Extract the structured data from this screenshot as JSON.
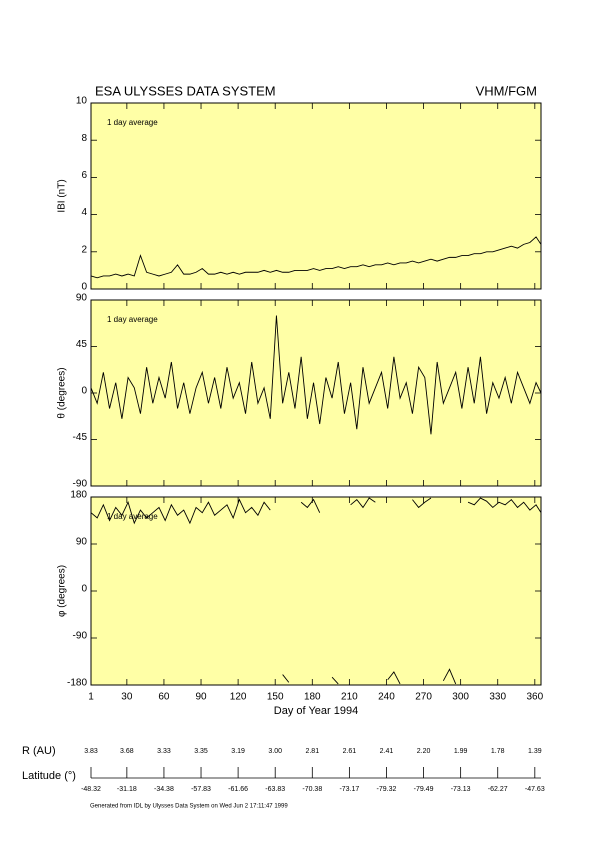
{
  "header": {
    "title": "ESA ULYSSES DATA SYSTEM",
    "instrument": "VHM/FGM"
  },
  "chart_data": [
    {
      "type": "line",
      "axis_label": "IBI (nT)",
      "annotation": "1 day average",
      "color": "#000000",
      "x": [
        1,
        6,
        11,
        16,
        21,
        26,
        31,
        36,
        41,
        46,
        51,
        56,
        61,
        66,
        71,
        76,
        81,
        86,
        91,
        96,
        101,
        106,
        111,
        116,
        121,
        126,
        131,
        136,
        141,
        146,
        151,
        156,
        161,
        166,
        171,
        176,
        181,
        186,
        191,
        196,
        201,
        206,
        211,
        216,
        221,
        226,
        231,
        236,
        241,
        246,
        251,
        256,
        261,
        266,
        271,
        276,
        281,
        286,
        291,
        296,
        301,
        306,
        311,
        316,
        321,
        326,
        331,
        336,
        341,
        346,
        351,
        356,
        361,
        365
      ],
      "values": [
        0.7,
        0.6,
        0.7,
        0.7,
        0.8,
        0.7,
        0.8,
        0.7,
        1.8,
        0.9,
        0.8,
        0.7,
        0.8,
        0.9,
        1.3,
        0.8,
        0.8,
        0.9,
        1.1,
        0.8,
        0.8,
        0.9,
        0.8,
        0.9,
        0.8,
        0.9,
        0.9,
        0.9,
        1.0,
        0.9,
        1.0,
        0.9,
        0.9,
        1.0,
        1.0,
        1.0,
        1.1,
        1.0,
        1.1,
        1.1,
        1.2,
        1.1,
        1.2,
        1.2,
        1.3,
        1.2,
        1.3,
        1.3,
        1.4,
        1.3,
        1.4,
        1.4,
        1.5,
        1.4,
        1.5,
        1.6,
        1.5,
        1.6,
        1.7,
        1.7,
        1.8,
        1.8,
        1.9,
        1.9,
        2.0,
        2.0,
        2.1,
        2.2,
        2.3,
        2.2,
        2.4,
        2.5,
        2.8,
        2.4
      ],
      "xlim": [
        1,
        365
      ],
      "xticks": [
        1,
        30,
        60,
        90,
        120,
        150,
        180,
        210,
        240,
        270,
        300,
        330,
        360
      ],
      "ylim": [
        0,
        10
      ],
      "yticks": [
        0,
        2,
        4,
        6,
        8,
        10
      ]
    },
    {
      "type": "line",
      "axis_label": "θ (degrees)",
      "annotation": "1 day average",
      "color": "#000000",
      "x": [
        1,
        6,
        11,
        16,
        21,
        26,
        31,
        36,
        41,
        46,
        51,
        56,
        61,
        66,
        71,
        76,
        81,
        86,
        91,
        96,
        101,
        106,
        111,
        116,
        121,
        126,
        131,
        136,
        141,
        146,
        151,
        156,
        161,
        166,
        171,
        176,
        181,
        186,
        191,
        196,
        201,
        206,
        211,
        216,
        221,
        226,
        231,
        236,
        241,
        246,
        251,
        256,
        261,
        266,
        271,
        276,
        281,
        286,
        291,
        296,
        301,
        306,
        311,
        316,
        321,
        326,
        331,
        336,
        341,
        346,
        351,
        356,
        361,
        365
      ],
      "values": [
        5,
        -10,
        20,
        -15,
        10,
        -25,
        15,
        5,
        -20,
        25,
        -10,
        15,
        -5,
        30,
        -15,
        10,
        -20,
        5,
        20,
        -10,
        15,
        -15,
        25,
        -5,
        10,
        -20,
        30,
        -10,
        5,
        -25,
        75,
        -10,
        20,
        -15,
        35,
        -25,
        10,
        -30,
        15,
        -5,
        30,
        -20,
        10,
        -35,
        25,
        -10,
        5,
        20,
        -15,
        35,
        -5,
        10,
        -20,
        25,
        15,
        -40,
        30,
        -10,
        5,
        20,
        -15,
        25,
        -10,
        35,
        -20,
        10,
        -5,
        15,
        -10,
        20,
        5,
        -10,
        10,
        0
      ],
      "xlim": [
        1,
        365
      ],
      "xticks": [
        1,
        30,
        60,
        90,
        120,
        150,
        180,
        210,
        240,
        270,
        300,
        330,
        360
      ],
      "ylim": [
        -90,
        90
      ],
      "yticks": [
        -90,
        -45,
        0,
        45,
        90
      ]
    },
    {
      "type": "line",
      "axis_label": "φ (degrees)",
      "annotation": "1 day average",
      "color": "#000000",
      "xlabel": "Day of Year 1994",
      "x": [
        1,
        6,
        11,
        16,
        21,
        26,
        31,
        36,
        41,
        46,
        51,
        56,
        61,
        66,
        71,
        76,
        81,
        86,
        91,
        96,
        101,
        106,
        111,
        116,
        121,
        126,
        131,
        136,
        141,
        146,
        151,
        156,
        161,
        166,
        171,
        176,
        181,
        186,
        191,
        196,
        201,
        206,
        211,
        216,
        221,
        226,
        231,
        236,
        241,
        246,
        251,
        256,
        261,
        266,
        271,
        276,
        281,
        286,
        291,
        296,
        301,
        306,
        311,
        316,
        321,
        326,
        331,
        336,
        341,
        346,
        351,
        356,
        361,
        365
      ],
      "values": [
        150,
        140,
        165,
        135,
        160,
        145,
        170,
        130,
        155,
        140,
        150,
        160,
        135,
        165,
        145,
        155,
        130,
        160,
        150,
        170,
        145,
        155,
        165,
        140,
        175,
        150,
        160,
        145,
        170,
        155,
        null,
        -160,
        -175,
        null,
        170,
        160,
        175,
        150,
        null,
        -165,
        -178,
        null,
        165,
        175,
        160,
        178,
        170,
        null,
        -170,
        -155,
        -178,
        null,
        175,
        160,
        170,
        178,
        null,
        -172,
        -150,
        -178,
        null,
        170,
        165,
        178,
        172,
        160,
        170,
        165,
        175,
        160,
        170,
        155,
        165,
        150
      ],
      "xlim": [
        1,
        365
      ],
      "xticks": [
        1,
        30,
        60,
        90,
        120,
        150,
        180,
        210,
        240,
        270,
        300,
        330,
        360
      ],
      "ylim": [
        -180,
        180
      ],
      "yticks": [
        -180,
        -90,
        0,
        90,
        180
      ]
    }
  ],
  "ephemeris": {
    "r_label": "R (AU)",
    "r": [
      "3.83",
      "3.68",
      "3.33",
      "3.35",
      "3.19",
      "3.00",
      "2.81",
      "2.61",
      "2.41",
      "2.20",
      "1.99",
      "1.78",
      "1.39"
    ],
    "lat_label": "Latitude (°)",
    "lat": [
      "-48.32",
      "-31.18",
      "-34.38",
      "-57.83",
      "-61.66",
      "-63.83",
      "-70.38",
      "-73.17",
      "-79.32",
      "-79.49",
      "-73.13",
      "-62.27",
      "-47.63"
    ]
  },
  "footer": "Generated from IDL by Ulysses Data System on Wed Jun  2 17:11:47 1999"
}
